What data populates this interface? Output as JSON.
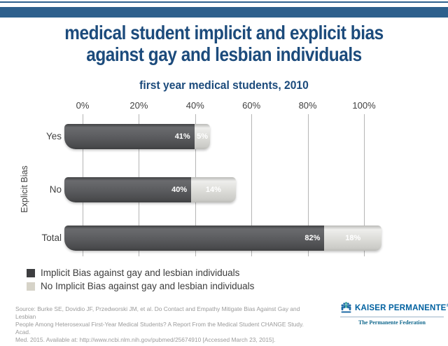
{
  "frame": {
    "top_rule_color": "#2e608d",
    "header_band_color": "#2e608d"
  },
  "title": {
    "line1": "medical student implicit and explicit bias",
    "line2": "against gay and lesbian individuals",
    "color": "#1c4b7c"
  },
  "subtitle": "first year medical students, 2010",
  "chart_data": {
    "type": "bar",
    "orientation": "horizontal",
    "stacked": true,
    "title": "first year medical students, 2010",
    "ylabel": "Explicit Bias",
    "xlabel": "",
    "categories": [
      "Yes",
      "No",
      "Total"
    ],
    "x_ticks": [
      "0%",
      "20%",
      "40%",
      "60%",
      "80%",
      "100%"
    ],
    "xlim": [
      0,
      100
    ],
    "grid": true,
    "legend_position": "bottom-left",
    "series": [
      {
        "name": "Implicit Bias against gay and lesbian individuals",
        "color": "#55565a",
        "values": [
          41,
          40,
          82
        ],
        "labels": [
          "41%",
          "40%",
          "82%"
        ]
      },
      {
        "name": "No Implicit Bias against gay and lesbian individuals",
        "color": "#d9d8d3",
        "values": [
          5,
          14,
          18
        ],
        "labels": [
          "5%",
          "14%",
          "18%"
        ]
      }
    ]
  },
  "legend": {
    "items": [
      {
        "label": "Implicit Bias against gay and lesbian individuals",
        "color": "#3d3e40"
      },
      {
        "label": "No Implicit Bias against gay and lesbian individuals",
        "color": "#d6d3c8"
      }
    ]
  },
  "source": {
    "lines": [
      "Source: Burke SE, Dovidio JF, Przedworski JM, et al. Do Contact and Empathy Mitigate Bias Against Gay and Lesbian",
      "People Among Heterosexual First-Year Medical Students? A Report From the Medical Student CHANGE Study. Acad.",
      "Med. 2015. Available at: http://www.ncbi.nlm.nih.gov/pubmed/25674910 [Accessed March 23, 2015]."
    ]
  },
  "footer": {
    "brand": "KAISER PERMANENTE",
    "registered": "®",
    "tagline": "The Permanente Federation",
    "brand_color": "#0061a0"
  }
}
